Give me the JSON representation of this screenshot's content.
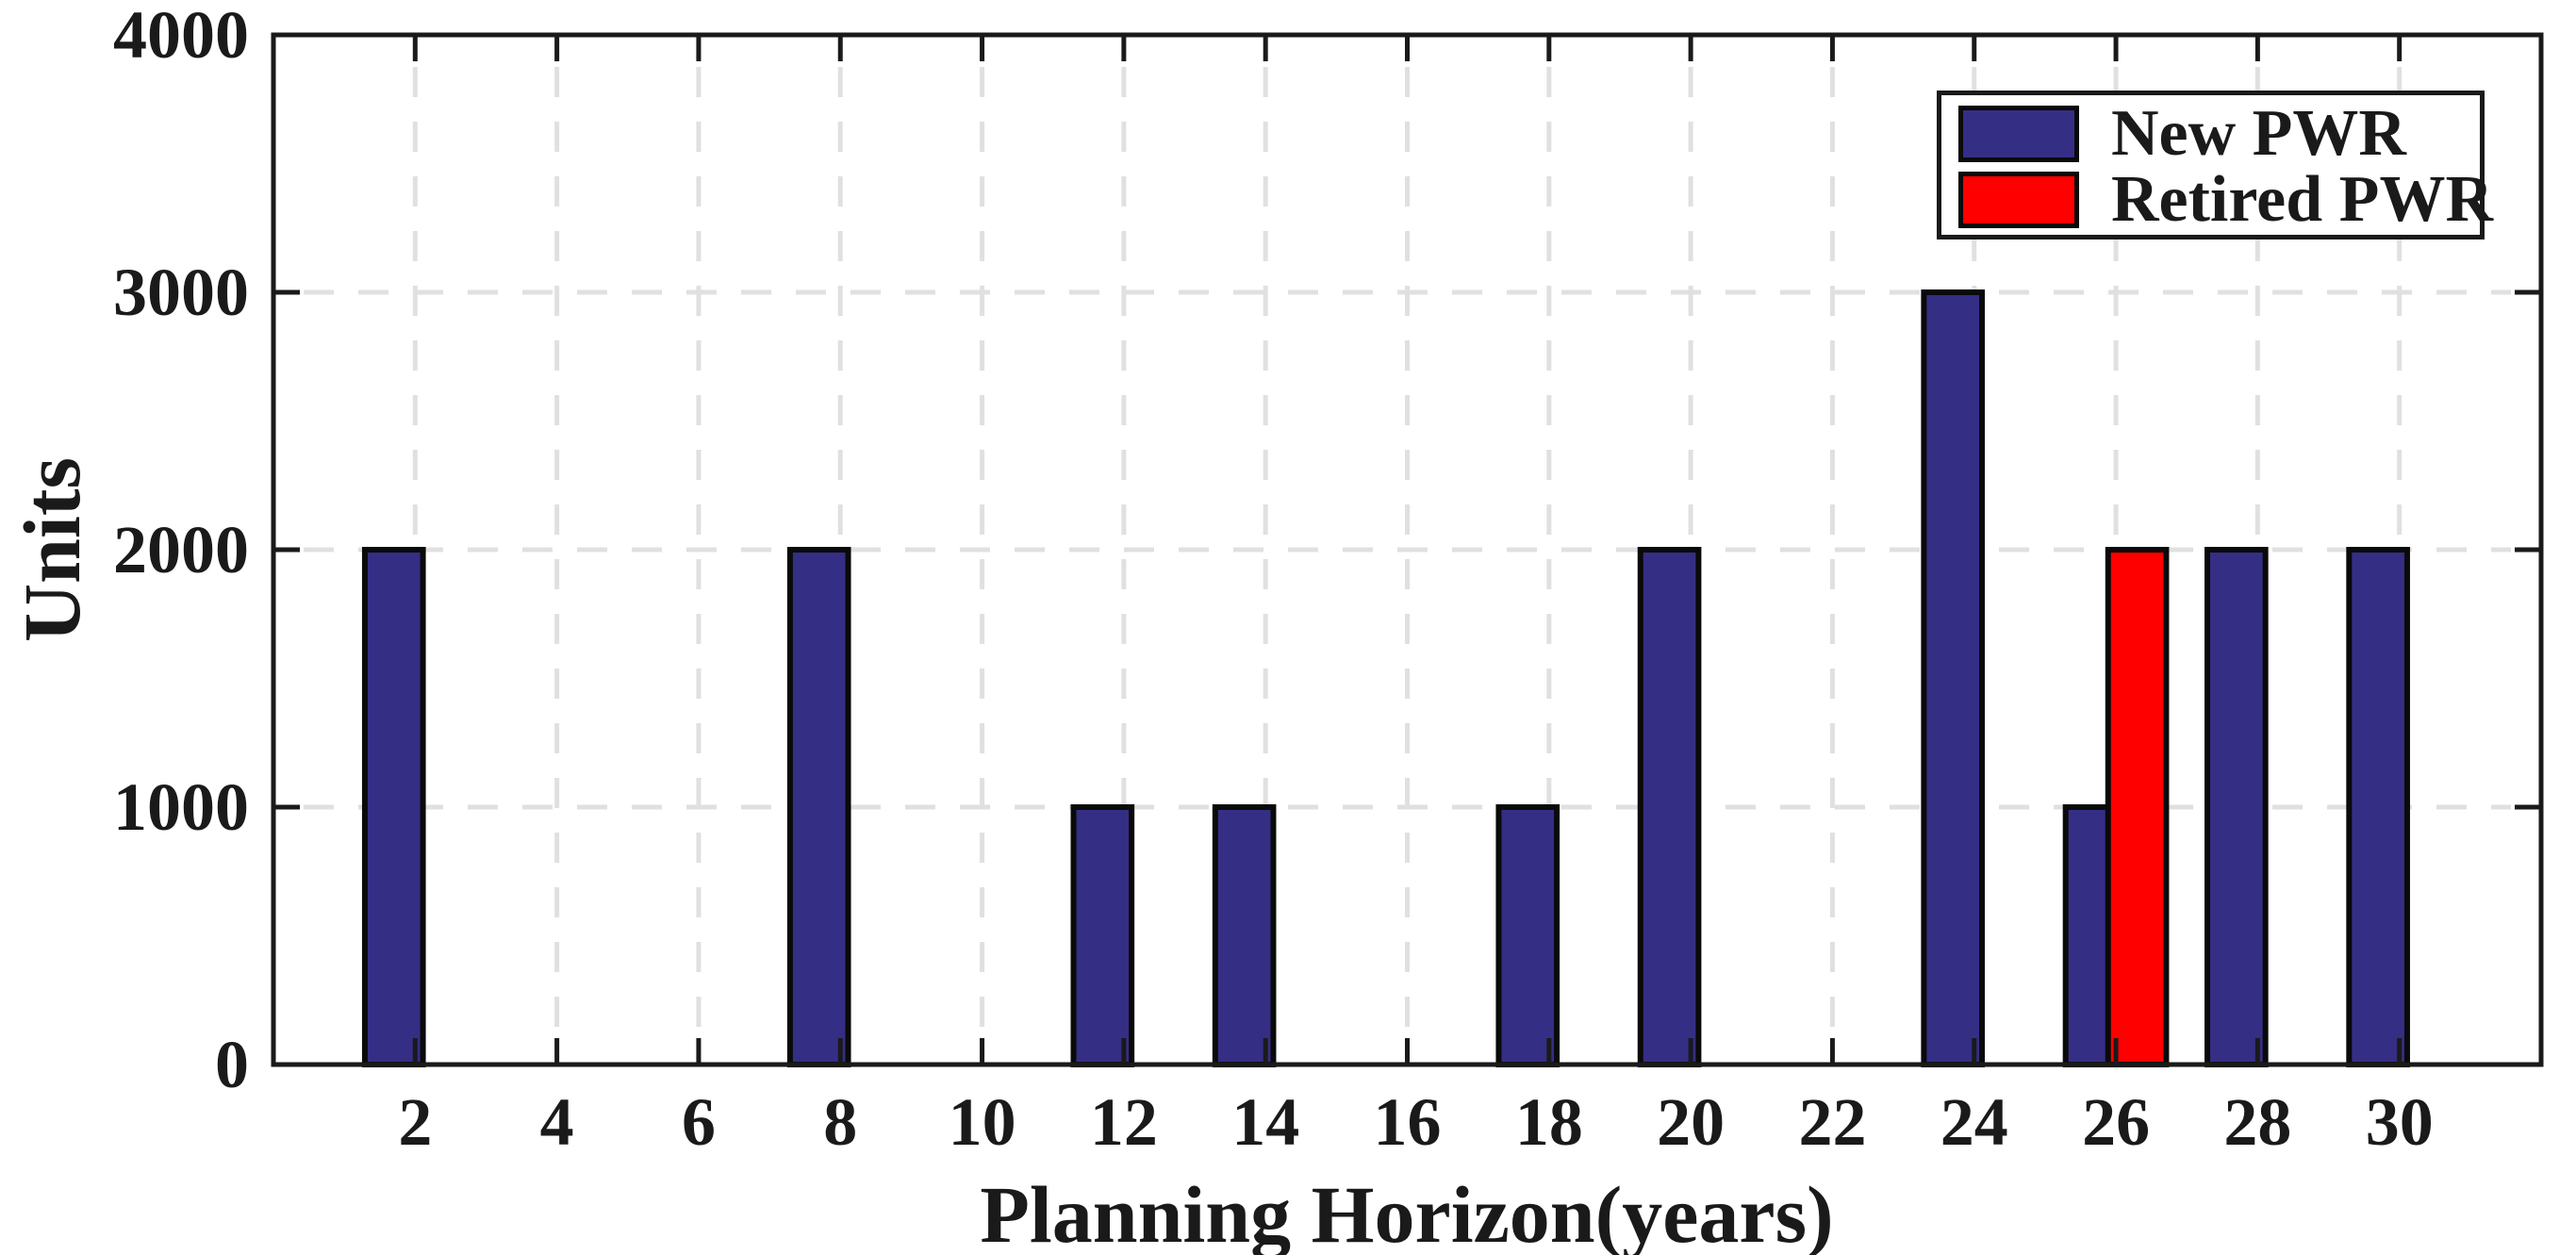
{
  "figure": {
    "background": "#FFFFFF",
    "text_color": "#1A1A1A"
  },
  "chart_data": {
    "type": "bar",
    "title": "",
    "xlabel": "Planning Horizon(years)",
    "ylabel": "Units",
    "xlim": [
      0,
      32
    ],
    "ylim": [
      0,
      4000
    ],
    "x_ticks": [
      2,
      4,
      6,
      8,
      10,
      12,
      14,
      16,
      18,
      20,
      22,
      24,
      26,
      28,
      30
    ],
    "y_ticks": [
      0,
      1000,
      2000,
      3000,
      4000
    ],
    "grid": "dashed",
    "grid_color": "#E0E0E0",
    "axis_color": "#1A1A1A",
    "bar_edge_color": "#0A0A0A",
    "bar_width_years": 0.9,
    "legend_position": "top-right",
    "series": [
      {
        "name": "New PWR",
        "color": "#352E85",
        "offset_years": -0.3,
        "points": [
          {
            "x": 2,
            "y": 2000
          },
          {
            "x": 8,
            "y": 2000
          },
          {
            "x": 12,
            "y": 1000
          },
          {
            "x": 14,
            "y": 1000
          },
          {
            "x": 18,
            "y": 1000
          },
          {
            "x": 20,
            "y": 2000
          },
          {
            "x": 24,
            "y": 3000
          },
          {
            "x": 26,
            "y": 1000
          },
          {
            "x": 28,
            "y": 2000
          },
          {
            "x": 30,
            "y": 2000
          }
        ]
      },
      {
        "name": "Retired PWR",
        "color": "#FF0000",
        "offset_years": 0.3,
        "points": [
          {
            "x": 26,
            "y": 2000
          }
        ]
      }
    ]
  }
}
